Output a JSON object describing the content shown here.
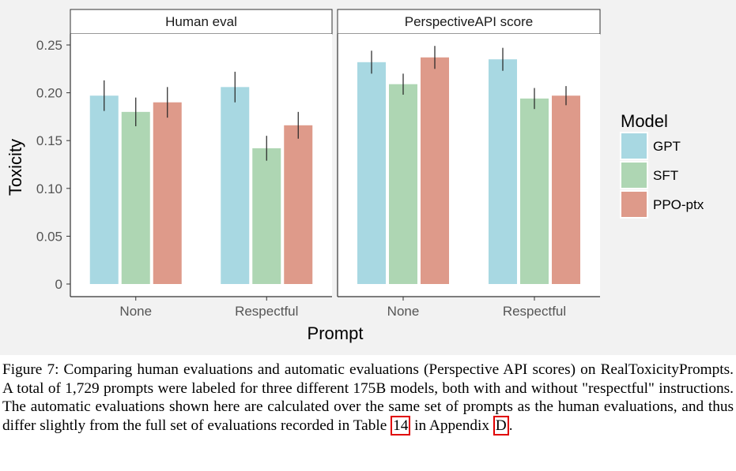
{
  "chart_data": {
    "type": "bar",
    "facets": [
      {
        "strip": "Human eval",
        "categories": [
          "None",
          "Respectful"
        ],
        "series": [
          {
            "name": "GPT",
            "color": "#a8d8e2",
            "values": [
              0.197,
              0.206
            ],
            "err": [
              0.016,
              0.016
            ]
          },
          {
            "name": "SFT",
            "color": "#aed6b3",
            "values": [
              0.18,
              0.142
            ],
            "err": [
              0.015,
              0.013
            ]
          },
          {
            "name": "PPO-ptx",
            "color": "#de9a8a",
            "values": [
              0.19,
              0.166
            ],
            "err": [
              0.016,
              0.014
            ]
          }
        ]
      },
      {
        "strip": "PerspectiveAPI score",
        "categories": [
          "None",
          "Respectful"
        ],
        "series": [
          {
            "name": "GPT",
            "color": "#a8d8e2",
            "values": [
              0.232,
              0.235
            ],
            "err": [
              0.012,
              0.012
            ]
          },
          {
            "name": "SFT",
            "color": "#aed6b3",
            "values": [
              0.209,
              0.194
            ],
            "err": [
              0.011,
              0.011
            ]
          },
          {
            "name": "PPO-ptx",
            "color": "#de9a8a",
            "values": [
              0.237,
              0.197
            ],
            "err": [
              0.012,
              0.01
            ]
          }
        ]
      }
    ],
    "ylabel": "Toxicity",
    "xlabel": "Prompt",
    "ylim": [
      0,
      0.26
    ],
    "yticks": [
      0,
      0.05,
      0.1,
      0.15,
      0.2,
      0.25
    ],
    "ytick_labels": [
      "0",
      "0.05",
      "0.10",
      "0.15",
      "0.20",
      "0.25"
    ],
    "legend": {
      "title": "Model",
      "entries": [
        "GPT",
        "SFT",
        "PPO-ptx"
      ],
      "position": "right"
    }
  },
  "caption": {
    "prefix": "Figure 7: Comparing human evaluations and automatic evaluations (Perspective API scores) on RealToxicityPrompts. A total of 1,729 prompts were labeled for three different 175B models, both with and without \"respectful\" instructions. The automatic evaluations shown here are calculated over the same set of prompts as the human evaluations, and thus differ slightly from the full set of evaluations recorded in Table ",
    "table_ref": "14",
    "middle": " in Appendix ",
    "appendix_ref": "D",
    "suffix": "."
  }
}
